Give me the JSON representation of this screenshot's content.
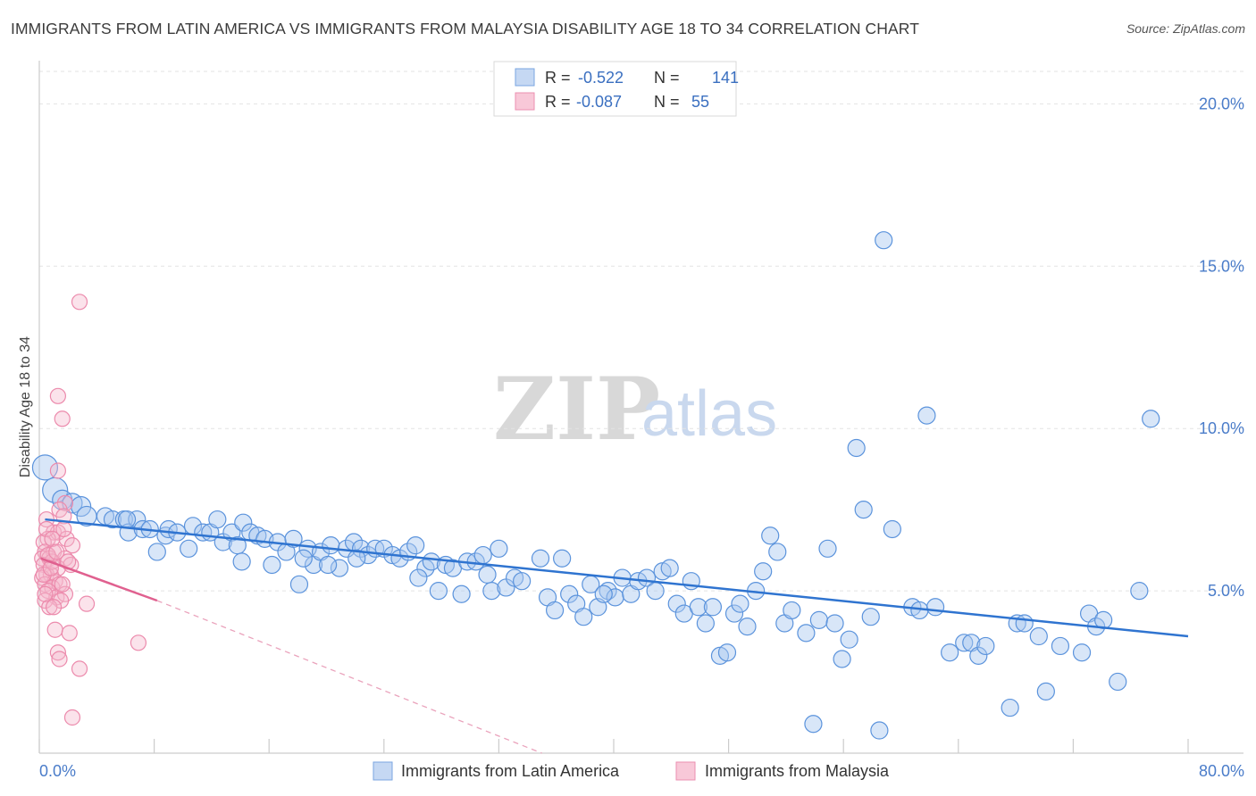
{
  "title": "IMMIGRANTS FROM LATIN AMERICA VS IMMIGRANTS FROM MALAYSIA DISABILITY AGE 18 TO 34 CORRELATION CHART",
  "source": "Source: ZipAtlas.com",
  "watermark": {
    "zip": "ZIP",
    "atlas": "atlas"
  },
  "colors": {
    "blue": "#4a86d8",
    "pink": "#e87aa0",
    "blue_fill": "#a9c7ef",
    "pink_fill": "#f5b8cc",
    "tick": "#4a7cc9"
  },
  "legend": {
    "rows": [
      {
        "r_label": "R =",
        "r_value": "-0.522",
        "n_label": "N =",
        "n_value": "141"
      },
      {
        "r_label": "R =",
        "r_value": "-0.087",
        "n_label": "N =",
        "n_value": "55"
      }
    ]
  },
  "bottom_legend": [
    "Immigrants from Latin America",
    "Immigrants from Malaysia"
  ],
  "chart_data": {
    "type": "scatter",
    "title": "IMMIGRANTS FROM LATIN AMERICA VS IMMIGRANTS FROM MALAYSIA DISABILITY AGE 18 TO 34 CORRELATION CHART",
    "xlabel": "",
    "ylabel": "Disability Age 18 to 34",
    "xlim": [
      0,
      80
    ],
    "ylim": [
      0,
      21
    ],
    "x_tick_labels": [
      "0.0%",
      "80.0%"
    ],
    "y_ticks": [
      5,
      10,
      15,
      20
    ],
    "y_tick_labels": [
      "5.0%",
      "10.0%",
      "15.0%",
      "20.0%"
    ],
    "series": [
      {
        "name": "Immigrants from Latin America",
        "color": "#4a86d8",
        "trendline": {
          "x": [
            0.4,
            80
          ],
          "y": [
            7.2,
            3.6
          ]
        },
        "points": [
          [
            0.4,
            8.8
          ],
          [
            1.1,
            8.1
          ],
          [
            1.6,
            7.8
          ],
          [
            2.3,
            7.7
          ],
          [
            2.9,
            7.6
          ],
          [
            3.3,
            7.3
          ],
          [
            4.6,
            7.3
          ],
          [
            5.1,
            7.2
          ],
          [
            5.9,
            7.2
          ],
          [
            6.2,
            6.8
          ],
          [
            6.8,
            7.2
          ],
          [
            7.2,
            6.9
          ],
          [
            7.7,
            6.9
          ],
          [
            8.2,
            6.2
          ],
          [
            8.8,
            6.7
          ],
          [
            9.0,
            6.9
          ],
          [
            9.6,
            6.8
          ],
          [
            10.4,
            6.3
          ],
          [
            10.7,
            7.0
          ],
          [
            11.4,
            6.8
          ],
          [
            11.9,
            6.8
          ],
          [
            12.4,
            7.2
          ],
          [
            12.8,
            6.5
          ],
          [
            13.4,
            6.8
          ],
          [
            13.8,
            6.4
          ],
          [
            14.2,
            7.1
          ],
          [
            14.7,
            6.8
          ],
          [
            15.2,
            6.7
          ],
          [
            15.7,
            6.6
          ],
          [
            16.2,
            5.8
          ],
          [
            16.6,
            6.5
          ],
          [
            17.2,
            6.2
          ],
          [
            17.7,
            6.6
          ],
          [
            18.1,
            5.2
          ],
          [
            18.7,
            6.3
          ],
          [
            19.1,
            5.8
          ],
          [
            19.6,
            6.2
          ],
          [
            20.3,
            6.4
          ],
          [
            20.9,
            5.7
          ],
          [
            21.4,
            6.3
          ],
          [
            21.9,
            6.5
          ],
          [
            22.4,
            6.3
          ],
          [
            22.9,
            6.1
          ],
          [
            23.4,
            6.3
          ],
          [
            24.0,
            6.3
          ],
          [
            24.6,
            6.1
          ],
          [
            25.1,
            6.0
          ],
          [
            25.7,
            6.2
          ],
          [
            26.2,
            6.4
          ],
          [
            26.9,
            5.7
          ],
          [
            27.3,
            5.9
          ],
          [
            27.8,
            5.0
          ],
          [
            28.3,
            5.8
          ],
          [
            28.8,
            5.7
          ],
          [
            29.4,
            4.9
          ],
          [
            29.8,
            5.9
          ],
          [
            30.4,
            5.9
          ],
          [
            30.9,
            6.1
          ],
          [
            31.5,
            5.0
          ],
          [
            32.0,
            6.3
          ],
          [
            32.5,
            5.1
          ],
          [
            33.1,
            5.4
          ],
          [
            33.6,
            5.3
          ],
          [
            34.9,
            6.0
          ],
          [
            35.4,
            4.8
          ],
          [
            35.9,
            4.4
          ],
          [
            36.4,
            6.0
          ],
          [
            36.9,
            4.9
          ],
          [
            37.4,
            4.6
          ],
          [
            37.9,
            4.2
          ],
          [
            38.4,
            5.2
          ],
          [
            38.9,
            4.5
          ],
          [
            39.6,
            5.0
          ],
          [
            40.1,
            4.8
          ],
          [
            40.6,
            5.4
          ],
          [
            41.2,
            4.9
          ],
          [
            41.7,
            5.3
          ],
          [
            42.3,
            5.4
          ],
          [
            42.9,
            5.0
          ],
          [
            43.4,
            5.6
          ],
          [
            43.9,
            5.7
          ],
          [
            44.4,
            4.6
          ],
          [
            44.9,
            4.3
          ],
          [
            45.4,
            5.3
          ],
          [
            45.9,
            4.5
          ],
          [
            46.4,
            4.0
          ],
          [
            46.9,
            4.5
          ],
          [
            47.4,
            3.0
          ],
          [
            47.9,
            3.1
          ],
          [
            48.4,
            4.3
          ],
          [
            48.8,
            4.6
          ],
          [
            49.3,
            3.9
          ],
          [
            49.9,
            5.0
          ],
          [
            50.4,
            5.6
          ],
          [
            50.9,
            6.7
          ],
          [
            51.4,
            6.2
          ],
          [
            51.9,
            4.0
          ],
          [
            52.4,
            4.4
          ],
          [
            53.4,
            3.7
          ],
          [
            54.3,
            4.1
          ],
          [
            54.9,
            6.3
          ],
          [
            55.4,
            4.0
          ],
          [
            55.9,
            2.9
          ],
          [
            56.4,
            3.5
          ],
          [
            56.9,
            9.4
          ],
          [
            57.4,
            7.5
          ],
          [
            57.9,
            4.2
          ],
          [
            58.5,
            0.7
          ],
          [
            58.8,
            15.8
          ],
          [
            59.4,
            6.9
          ],
          [
            60.8,
            4.5
          ],
          [
            61.3,
            4.4
          ],
          [
            61.8,
            10.4
          ],
          [
            62.4,
            4.5
          ],
          [
            63.4,
            3.1
          ],
          [
            64.4,
            3.4
          ],
          [
            64.9,
            3.4
          ],
          [
            65.4,
            3.0
          ],
          [
            65.9,
            3.3
          ],
          [
            67.6,
            1.4
          ],
          [
            68.1,
            4.0
          ],
          [
            68.6,
            4.0
          ],
          [
            69.6,
            3.6
          ],
          [
            70.1,
            1.9
          ],
          [
            71.1,
            3.3
          ],
          [
            72.6,
            3.1
          ],
          [
            73.1,
            4.3
          ],
          [
            73.6,
            3.9
          ],
          [
            74.1,
            4.1
          ],
          [
            75.1,
            2.2
          ],
          [
            76.6,
            5.0
          ],
          [
            77.4,
            10.3
          ],
          [
            53.9,
            0.9
          ],
          [
            20.1,
            5.8
          ],
          [
            14.1,
            5.9
          ],
          [
            22.1,
            6.0
          ],
          [
            18.4,
            6.0
          ],
          [
            6.1,
            7.2
          ],
          [
            26.4,
            5.4
          ],
          [
            31.2,
            5.5
          ],
          [
            39.3,
            4.9
          ]
        ]
      },
      {
        "name": "Immigrants from Malaysia",
        "color": "#e87aa0",
        "trendline": {
          "x": [
            0.1,
            8.2
          ],
          "y": [
            6.0,
            4.7
          ]
        },
        "trendline_extended": {
          "x": [
            8.2,
            35.0
          ],
          "y": [
            4.7,
            0.0
          ]
        },
        "points": [
          [
            2.8,
            13.9
          ],
          [
            1.3,
            11.0
          ],
          [
            1.6,
            10.3
          ],
          [
            1.3,
            8.7
          ],
          [
            1.8,
            7.7
          ],
          [
            1.4,
            7.5
          ],
          [
            0.5,
            7.2
          ],
          [
            1.7,
            7.3
          ],
          [
            1.0,
            6.8
          ],
          [
            1.3,
            6.8
          ],
          [
            0.6,
            6.6
          ],
          [
            1.9,
            6.6
          ],
          [
            0.3,
            6.5
          ],
          [
            2.3,
            6.4
          ],
          [
            0.4,
            6.2
          ],
          [
            1.0,
            6.2
          ],
          [
            0.2,
            6.0
          ],
          [
            0.7,
            6.0
          ],
          [
            1.8,
            6.0
          ],
          [
            0.3,
            5.8
          ],
          [
            1.3,
            5.7
          ],
          [
            2.2,
            5.8
          ],
          [
            0.5,
            5.5
          ],
          [
            0.8,
            5.5
          ],
          [
            0.2,
            5.4
          ],
          [
            1.1,
            5.3
          ],
          [
            0.4,
            5.2
          ],
          [
            0.9,
            5.1
          ],
          [
            1.4,
            5.2
          ],
          [
            0.6,
            5.0
          ],
          [
            1.2,
            4.8
          ],
          [
            1.8,
            4.9
          ],
          [
            0.4,
            4.7
          ],
          [
            1.5,
            4.7
          ],
          [
            0.7,
            4.5
          ],
          [
            3.3,
            4.6
          ],
          [
            1.1,
            3.8
          ],
          [
            2.1,
            3.7
          ],
          [
            6.9,
            3.4
          ],
          [
            1.3,
            3.1
          ],
          [
            1.4,
            2.9
          ],
          [
            2.8,
            2.6
          ],
          [
            2.3,
            1.1
          ],
          [
            0.9,
            5.9
          ],
          [
            1.7,
            6.9
          ],
          [
            0.5,
            6.9
          ],
          [
            1.0,
            4.5
          ],
          [
            0.3,
            5.5
          ],
          [
            1.6,
            5.2
          ],
          [
            0.9,
            6.6
          ],
          [
            2.0,
            5.9
          ],
          [
            0.6,
            6.1
          ],
          [
            1.2,
            6.2
          ],
          [
            0.4,
            4.9
          ],
          [
            0.8,
            5.7
          ]
        ]
      }
    ]
  }
}
